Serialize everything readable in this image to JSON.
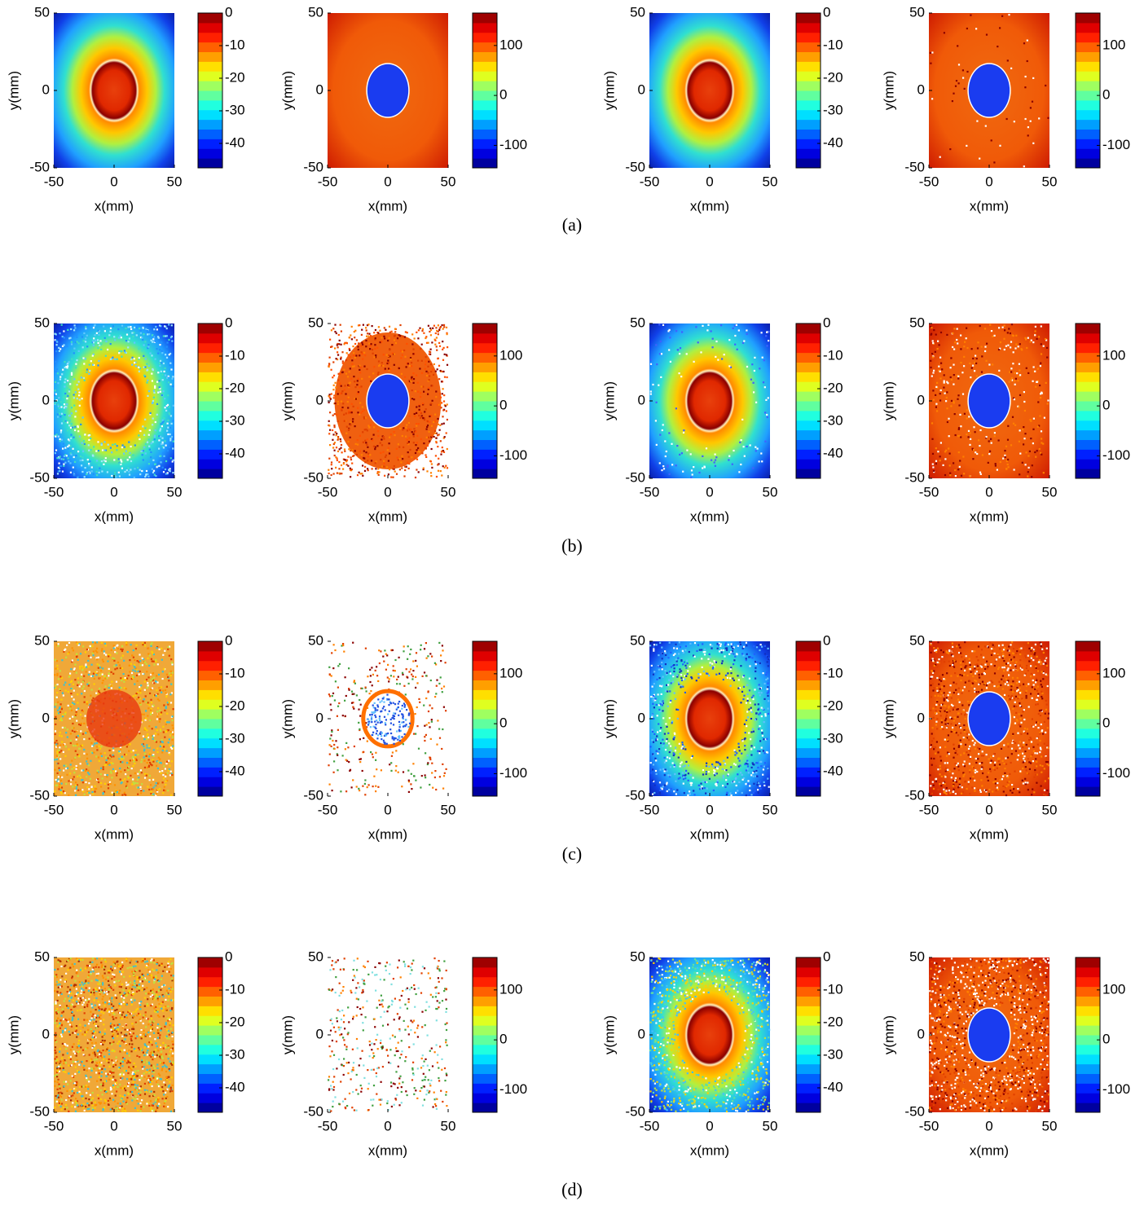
{
  "figure": {
    "captions": [
      "(a)",
      "(b)",
      "(c)",
      "(d)"
    ]
  },
  "chart_data": [
    {
      "type": "heatmap",
      "xlabel": "x(mm)",
      "ylabel": "y(mm)",
      "xlim": [
        -50,
        50
      ],
      "xticks": [
        -50,
        0,
        50
      ],
      "ylim": [
        -50,
        50
      ],
      "yticks": [
        -50,
        0,
        50
      ],
      "colorbar": {
        "clim": [
          -47.5,
          0
        ],
        "ticks": [
          0,
          -10,
          -20,
          -30,
          -40
        ]
      }
    },
    {
      "type": "heatmap",
      "xlabel": "x(mm)",
      "ylabel": "y(mm)",
      "xlim": [
        -50,
        50
      ],
      "xticks": [
        -50,
        0,
        50
      ],
      "ylim": [
        -50,
        50
      ],
      "yticks": [
        -50,
        0,
        50
      ],
      "colorbar": {
        "clim": [
          -145,
          165
        ],
        "ticks": [
          100,
          0,
          -100
        ]
      }
    },
    {
      "type": "heatmap",
      "xlabel": "x(mm)",
      "ylabel": "y(mm)",
      "xlim": [
        -50,
        50
      ],
      "xticks": [
        -50,
        0,
        50
      ],
      "ylim": [
        -50,
        50
      ],
      "yticks": [
        -50,
        0,
        50
      ],
      "colorbar": {
        "clim": [
          -47.5,
          0
        ],
        "ticks": [
          0,
          -10,
          -20,
          -30,
          -40
        ]
      }
    },
    {
      "type": "heatmap",
      "xlabel": "x(mm)",
      "ylabel": "y(mm)",
      "xlim": [
        -50,
        50
      ],
      "xticks": [
        -50,
        0,
        50
      ],
      "ylim": [
        -50,
        50
      ],
      "yticks": [
        -50,
        0,
        50
      ],
      "colorbar": {
        "clim": [
          -145,
          165
        ],
        "ticks": [
          100,
          0,
          -100
        ]
      }
    },
    {
      "type": "heatmap",
      "xlabel": "x(mm)",
      "ylabel": "y(mm)",
      "xlim": [
        -50,
        50
      ],
      "xticks": [
        -50,
        0,
        50
      ],
      "ylim": [
        -50,
        50
      ],
      "yticks": [
        -50,
        0,
        50
      ],
      "colorbar": {
        "clim": [
          -47.5,
          0
        ],
        "ticks": [
          0,
          -10,
          -20,
          -30,
          -40
        ]
      }
    },
    {
      "type": "heatmap",
      "xlabel": "x(mm)",
      "ylabel": "y(mm)",
      "xlim": [
        -50,
        50
      ],
      "xticks": [
        -50,
        0,
        50
      ],
      "ylim": [
        -50,
        50
      ],
      "yticks": [
        -50,
        0,
        50
      ],
      "colorbar": {
        "clim": [
          -145,
          165
        ],
        "ticks": [
          100,
          0,
          -100
        ]
      }
    },
    {
      "type": "heatmap",
      "xlabel": "x(mm)",
      "ylabel": "y(mm)",
      "xlim": [
        -50,
        50
      ],
      "xticks": [
        -50,
        0,
        50
      ],
      "ylim": [
        -50,
        50
      ],
      "yticks": [
        -50,
        0,
        50
      ],
      "colorbar": {
        "clim": [
          -47.5,
          0
        ],
        "ticks": [
          0,
          -10,
          -20,
          -30,
          -40
        ]
      }
    },
    {
      "type": "heatmap",
      "xlabel": "x(mm)",
      "ylabel": "y(mm)",
      "xlim": [
        -50,
        50
      ],
      "xticks": [
        -50,
        0,
        50
      ],
      "ylim": [
        -50,
        50
      ],
      "yticks": [
        -50,
        0,
        50
      ],
      "colorbar": {
        "clim": [
          -145,
          165
        ],
        "ticks": [
          100,
          0,
          -100
        ]
      }
    },
    {
      "type": "heatmap",
      "xlabel": "x(mm)",
      "ylabel": "y(mm)",
      "xlim": [
        -50,
        50
      ],
      "xticks": [
        -50,
        0,
        50
      ],
      "ylim": [
        -50,
        50
      ],
      "yticks": [
        -50,
        0,
        50
      ],
      "colorbar": {
        "clim": [
          -47.5,
          0
        ],
        "ticks": [
          0,
          -10,
          -20,
          -30,
          -40
        ]
      }
    },
    {
      "type": "heatmap",
      "xlabel": "x(mm)",
      "ylabel": "y(mm)",
      "xlim": [
        -50,
        50
      ],
      "xticks": [
        -50,
        0,
        50
      ],
      "ylim": [
        -50,
        50
      ],
      "yticks": [
        -50,
        0,
        50
      ],
      "colorbar": {
        "clim": [
          -145,
          165
        ],
        "ticks": [
          100,
          0,
          -100
        ]
      }
    },
    {
      "type": "heatmap",
      "xlabel": "x(mm)",
      "ylabel": "y(mm)",
      "xlim": [
        -50,
        50
      ],
      "xticks": [
        -50,
        0,
        50
      ],
      "ylim": [
        -50,
        50
      ],
      "yticks": [
        -50,
        0,
        50
      ],
      "colorbar": {
        "clim": [
          -47.5,
          0
        ],
        "ticks": [
          0,
          -10,
          -20,
          -30,
          -40
        ]
      }
    },
    {
      "type": "heatmap",
      "xlabel": "x(mm)",
      "ylabel": "y(mm)",
      "xlim": [
        -50,
        50
      ],
      "xticks": [
        -50,
        0,
        50
      ],
      "ylim": [
        -50,
        50
      ],
      "yticks": [
        -50,
        0,
        50
      ],
      "colorbar": {
        "clim": [
          -145,
          165
        ],
        "ticks": [
          100,
          0,
          -100
        ]
      }
    },
    {
      "type": "heatmap",
      "xlabel": "x(mm)",
      "ylabel": "y(mm)",
      "xlim": [
        -50,
        50
      ],
      "xticks": [
        -50,
        0,
        50
      ],
      "ylim": [
        -50,
        50
      ],
      "yticks": [
        -50,
        0,
        50
      ],
      "colorbar": {
        "clim": [
          -47.5,
          0
        ],
        "ticks": [
          0,
          -10,
          -20,
          -30,
          -40
        ]
      }
    },
    {
      "type": "heatmap",
      "xlabel": "x(mm)",
      "ylabel": "y(mm)",
      "xlim": [
        -50,
        50
      ],
      "xticks": [
        -50,
        0,
        50
      ],
      "ylim": [
        -50,
        50
      ],
      "yticks": [
        -50,
        0,
        50
      ],
      "colorbar": {
        "clim": [
          -145,
          165
        ],
        "ticks": [
          100,
          0,
          -100
        ]
      }
    },
    {
      "type": "heatmap",
      "xlabel": "x(mm)",
      "ylabel": "y(mm)",
      "xlim": [
        -50,
        50
      ],
      "xticks": [
        -50,
        0,
        50
      ],
      "ylim": [
        -50,
        50
      ],
      "yticks": [
        -50,
        0,
        50
      ],
      "colorbar": {
        "clim": [
          -47.5,
          0
        ],
        "ticks": [
          0,
          -10,
          -20,
          -30,
          -40
        ]
      }
    },
    {
      "type": "heatmap",
      "xlabel": "x(mm)",
      "ylabel": "y(mm)",
      "xlim": [
        -50,
        50
      ],
      "xticks": [
        -50,
        0,
        50
      ],
      "ylim": [
        -50,
        50
      ],
      "yticks": [
        -50,
        0,
        50
      ],
      "colorbar": {
        "clim": [
          -145,
          165
        ],
        "ticks": [
          100,
          0,
          -100
        ]
      }
    }
  ]
}
